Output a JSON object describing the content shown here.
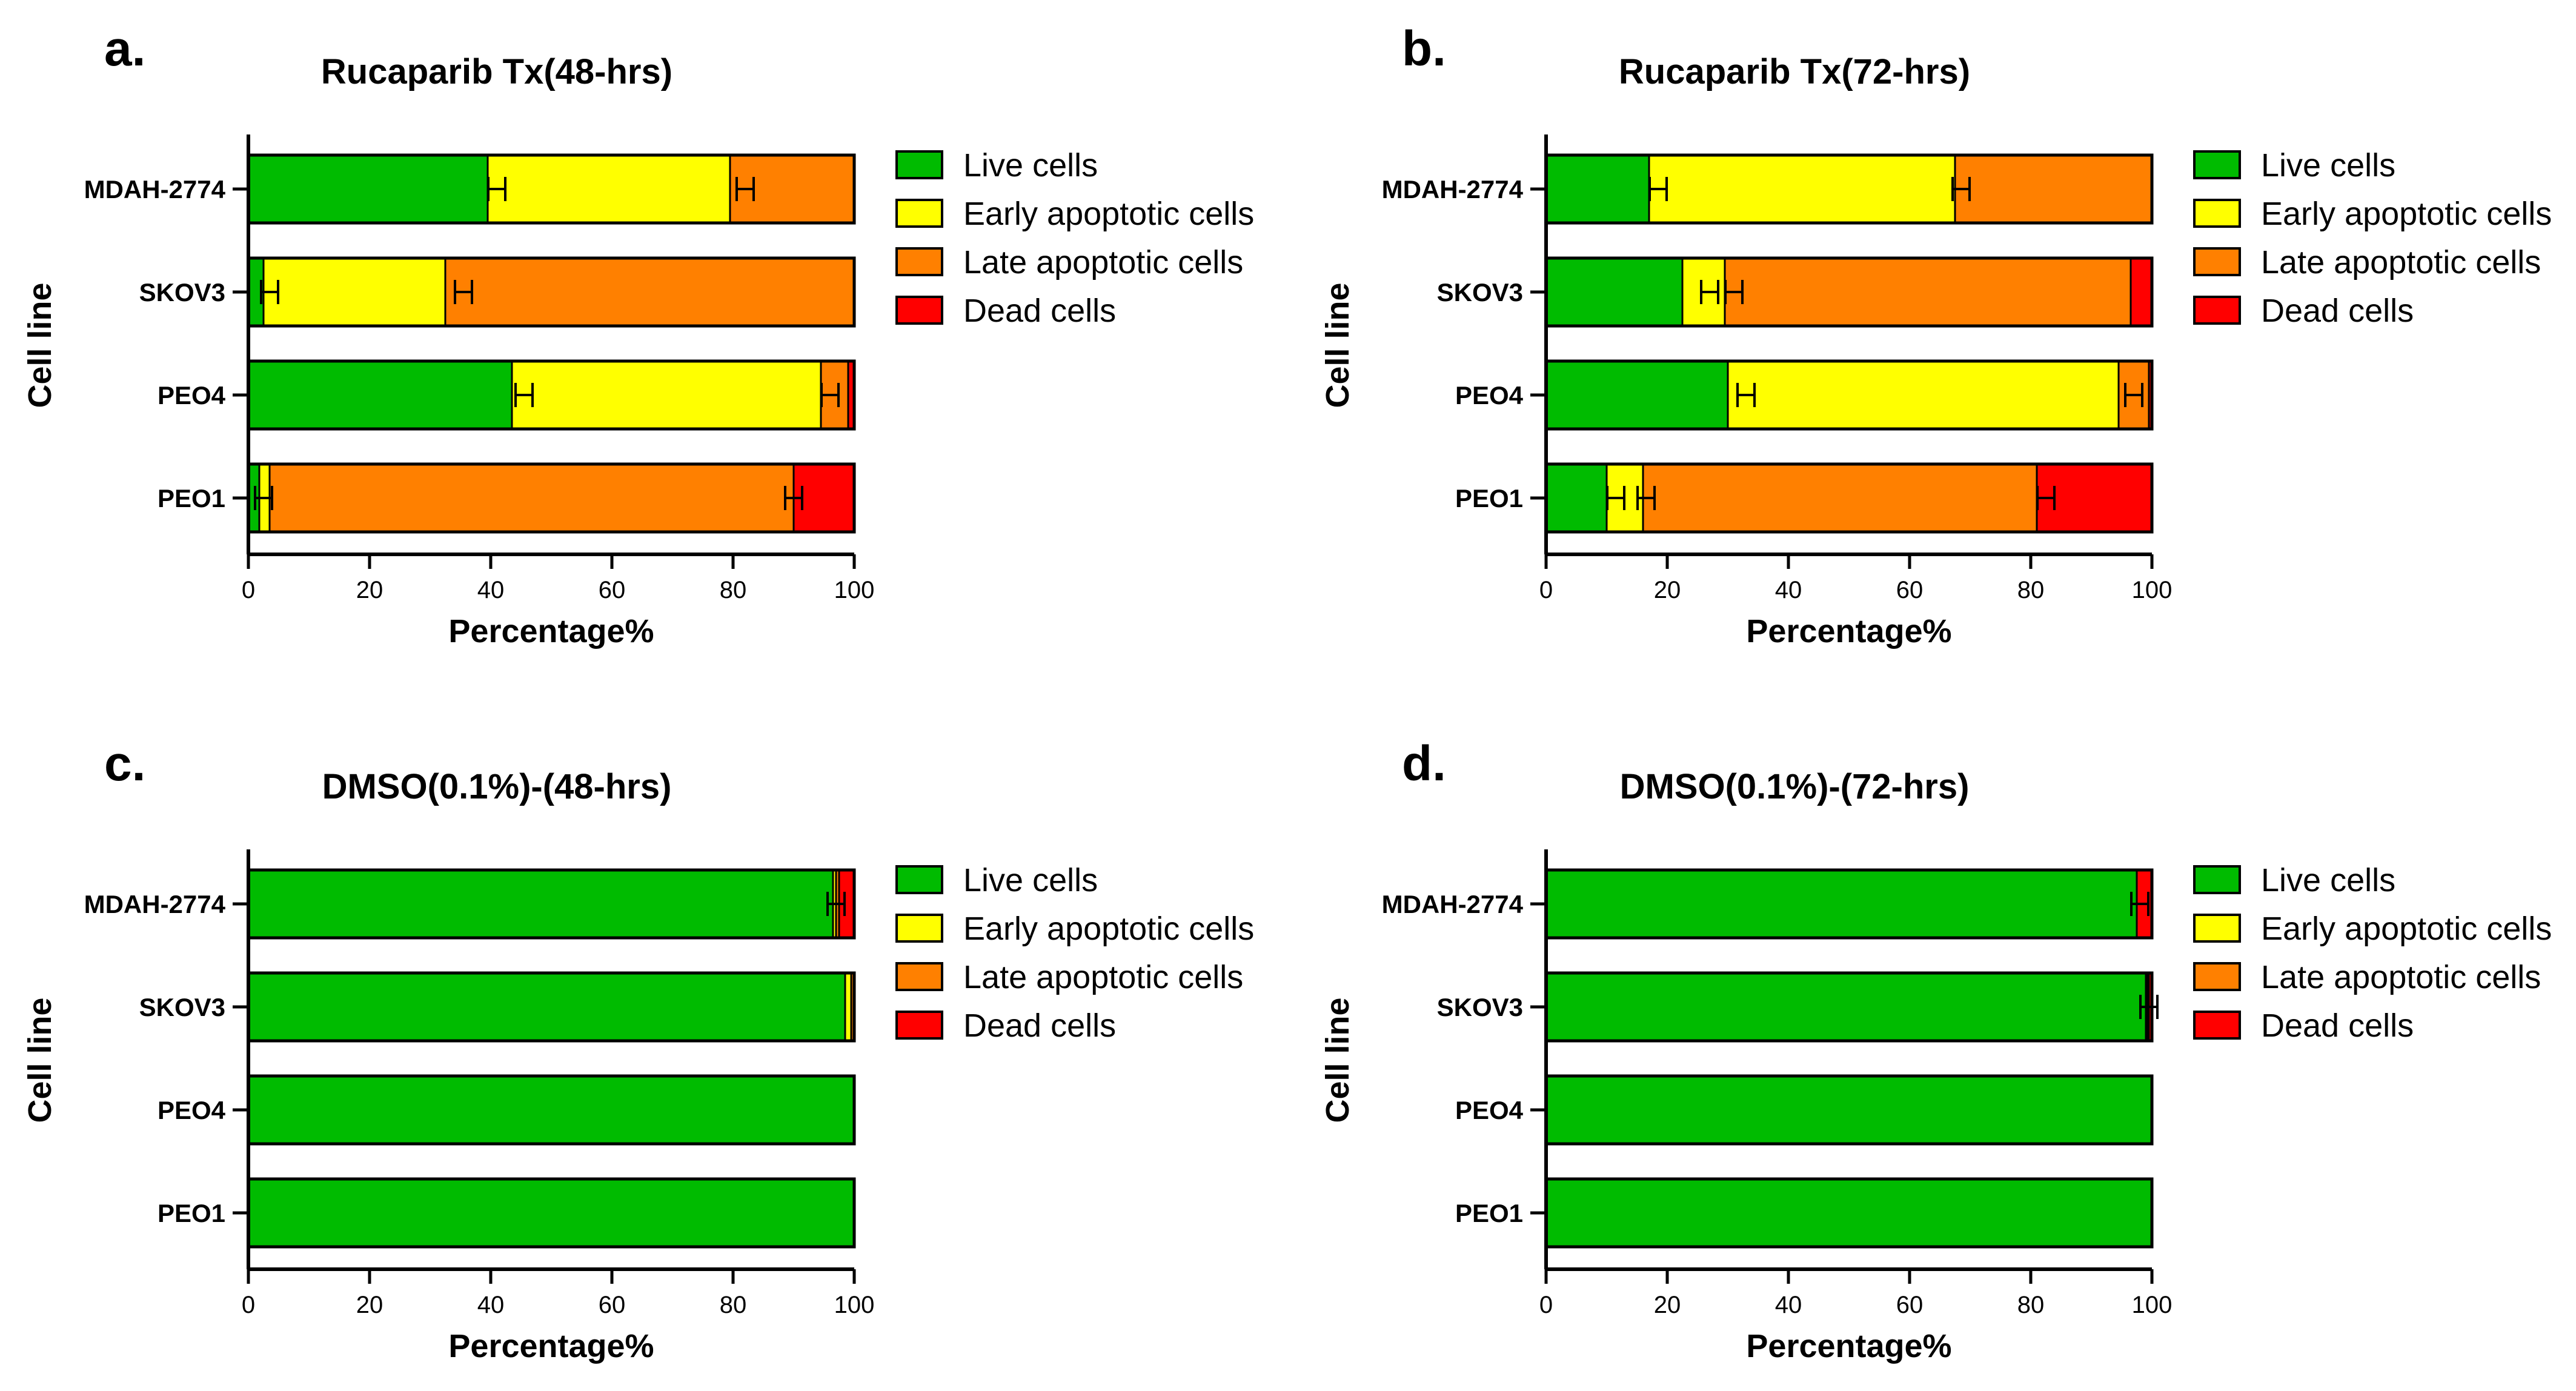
{
  "series_names": [
    "Live cells",
    "Early apoptotic cells",
    "Late apoptotic cells",
    "Dead cells"
  ],
  "series_colors": [
    "#00bb00",
    "#ffff00",
    "#ff8000",
    "#ff0000"
  ],
  "chart_data": [
    {
      "letter": "a.",
      "type": "bar",
      "stacked": true,
      "orientation": "horizontal",
      "title": "Rucaparib Tx(48-hrs)",
      "xlabel": "Percentage%",
      "ylabel": "Cell line",
      "xlim": [
        0,
        100
      ],
      "xticks": [
        "0",
        "20",
        "40",
        "60",
        "80",
        "100"
      ],
      "categories": [
        "MDAH-2774",
        "SKOV3",
        "PEO4",
        "PEO1"
      ],
      "series": [
        {
          "name": "Live cells",
          "values": [
            39.5,
            2.5,
            43.5,
            1.8
          ]
        },
        {
          "name": "Early apoptotic cells",
          "values": [
            40,
            30,
            51,
            1.7
          ]
        },
        {
          "name": "Late apoptotic cells",
          "values": [
            20.5,
            67.5,
            4.5,
            86.5
          ]
        },
        {
          "name": "Dead cells",
          "values": [
            0,
            0,
            1,
            10
          ]
        }
      ],
      "errors": [
        [
          41,
          82
        ],
        [
          3.5,
          35.5
        ],
        [
          45.5,
          96
        ],
        [
          2.5,
          90
        ]
      ]
    },
    {
      "letter": "b.",
      "type": "bar",
      "stacked": true,
      "orientation": "horizontal",
      "title": "Rucaparib Tx(72-hrs)",
      "xlabel": "Percentage%",
      "ylabel": "Cell line",
      "xlim": [
        0,
        100
      ],
      "xticks": [
        "0",
        "20",
        "40",
        "60",
        "80",
        "100"
      ],
      "categories": [
        "MDAH-2774",
        "SKOV3",
        "PEO4",
        "PEO1"
      ],
      "series": [
        {
          "name": "Live cells",
          "values": [
            17,
            22.5,
            30,
            10
          ]
        },
        {
          "name": "Early apoptotic cells",
          "values": [
            50.5,
            7,
            64.5,
            6
          ]
        },
        {
          "name": "Late apoptotic cells",
          "values": [
            32.5,
            67,
            5,
            65
          ]
        },
        {
          "name": "Dead cells",
          "values": [
            0,
            3.5,
            0.5,
            19
          ]
        }
      ],
      "errors": [
        [
          18.5,
          68.5
        ],
        [
          27,
          31
        ],
        [
          33,
          97
        ],
        [
          11.5,
          16.5,
          82.5
        ]
      ]
    },
    {
      "letter": "c.",
      "type": "bar",
      "stacked": true,
      "orientation": "horizontal",
      "title": "DMSO(0.1%)-(48-hrs)",
      "xlabel": "Percentage%",
      "ylabel": "Cell line",
      "xlim": [
        0,
        100
      ],
      "xticks": [
        "0",
        "20",
        "40",
        "60",
        "80",
        "100"
      ],
      "categories": [
        "MDAH-2774",
        "SKOV3",
        "PEO4",
        "PEO1"
      ],
      "series": [
        {
          "name": "Live cells",
          "values": [
            96.5,
            98.5,
            100,
            100
          ]
        },
        {
          "name": "Early apoptotic cells",
          "values": [
            0.5,
            1,
            0,
            0
          ]
        },
        {
          "name": "Late apoptotic cells",
          "values": [
            0.5,
            0.5,
            0,
            0
          ]
        },
        {
          "name": "Dead cells",
          "values": [
            2.5,
            0,
            0,
            0
          ]
        }
      ],
      "errors": [
        [
          97
        ],
        [],
        [],
        []
      ]
    },
    {
      "letter": "d.",
      "type": "bar",
      "stacked": true,
      "orientation": "horizontal",
      "title": "DMSO(0.1%)-(72-hrs)",
      "xlabel": "Percentage%",
      "ylabel": "Cell line",
      "xlim": [
        0,
        100
      ],
      "xticks": [
        "0",
        "20",
        "40",
        "60",
        "80",
        "100"
      ],
      "categories": [
        "MDAH-2774",
        "SKOV3",
        "PEO4",
        "PEO1"
      ],
      "series": [
        {
          "name": "Live cells",
          "values": [
            97.5,
            99,
            100,
            100
          ]
        },
        {
          "name": "Early apoptotic cells",
          "values": [
            0,
            0.3,
            0,
            0
          ]
        },
        {
          "name": "Late apoptotic cells",
          "values": [
            0,
            0.2,
            0,
            0
          ]
        },
        {
          "name": "Dead cells",
          "values": [
            2.5,
            0.5,
            0,
            0
          ]
        }
      ],
      "errors": [
        [
          98
        ],
        [
          99.5
        ],
        [],
        []
      ]
    }
  ]
}
